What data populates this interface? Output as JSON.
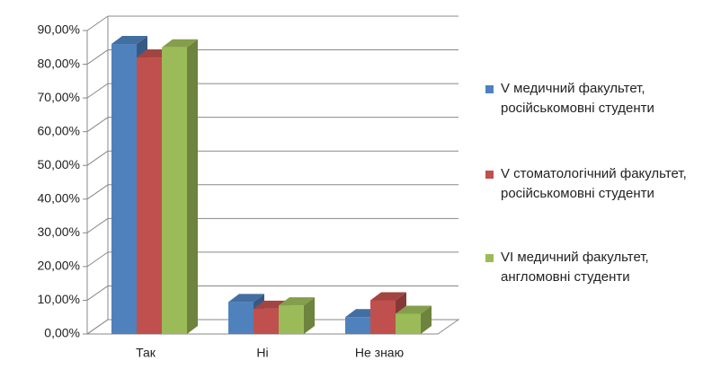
{
  "chart_data": {
    "type": "bar3d",
    "categories": [
      "Так",
      "Ні",
      "Не знаю"
    ],
    "series": [
      {
        "name": "V медичний факультет, російськомовні студенти",
        "color": "#4f81bd",
        "values": [
          86,
          9.5,
          5
        ]
      },
      {
        "name": "V стоматологічний факультет, російськомовні студенти",
        "color": "#c0504d",
        "values": [
          82,
          7.5,
          10
        ]
      },
      {
        "name": "VI медичний факультет, англомовні студенти",
        "color": "#9bbb59",
        "values": [
          85,
          8.5,
          6
        ]
      }
    ],
    "ylim": [
      0,
      90
    ],
    "yticks": [
      {
        "value": 0,
        "label": "0,00%"
      },
      {
        "value": 10,
        "label": "10,00%"
      },
      {
        "value": 20,
        "label": "20,00%"
      },
      {
        "value": 30,
        "label": "30,00%"
      },
      {
        "value": 40,
        "label": "40,00%"
      },
      {
        "value": 50,
        "label": "50,00%"
      },
      {
        "value": 60,
        "label": "60,00%"
      },
      {
        "value": 70,
        "label": "70,00%"
      },
      {
        "value": 80,
        "label": "80,00%"
      },
      {
        "value": 90,
        "label": "90,00%"
      }
    ],
    "grid": true,
    "legend": "right"
  }
}
